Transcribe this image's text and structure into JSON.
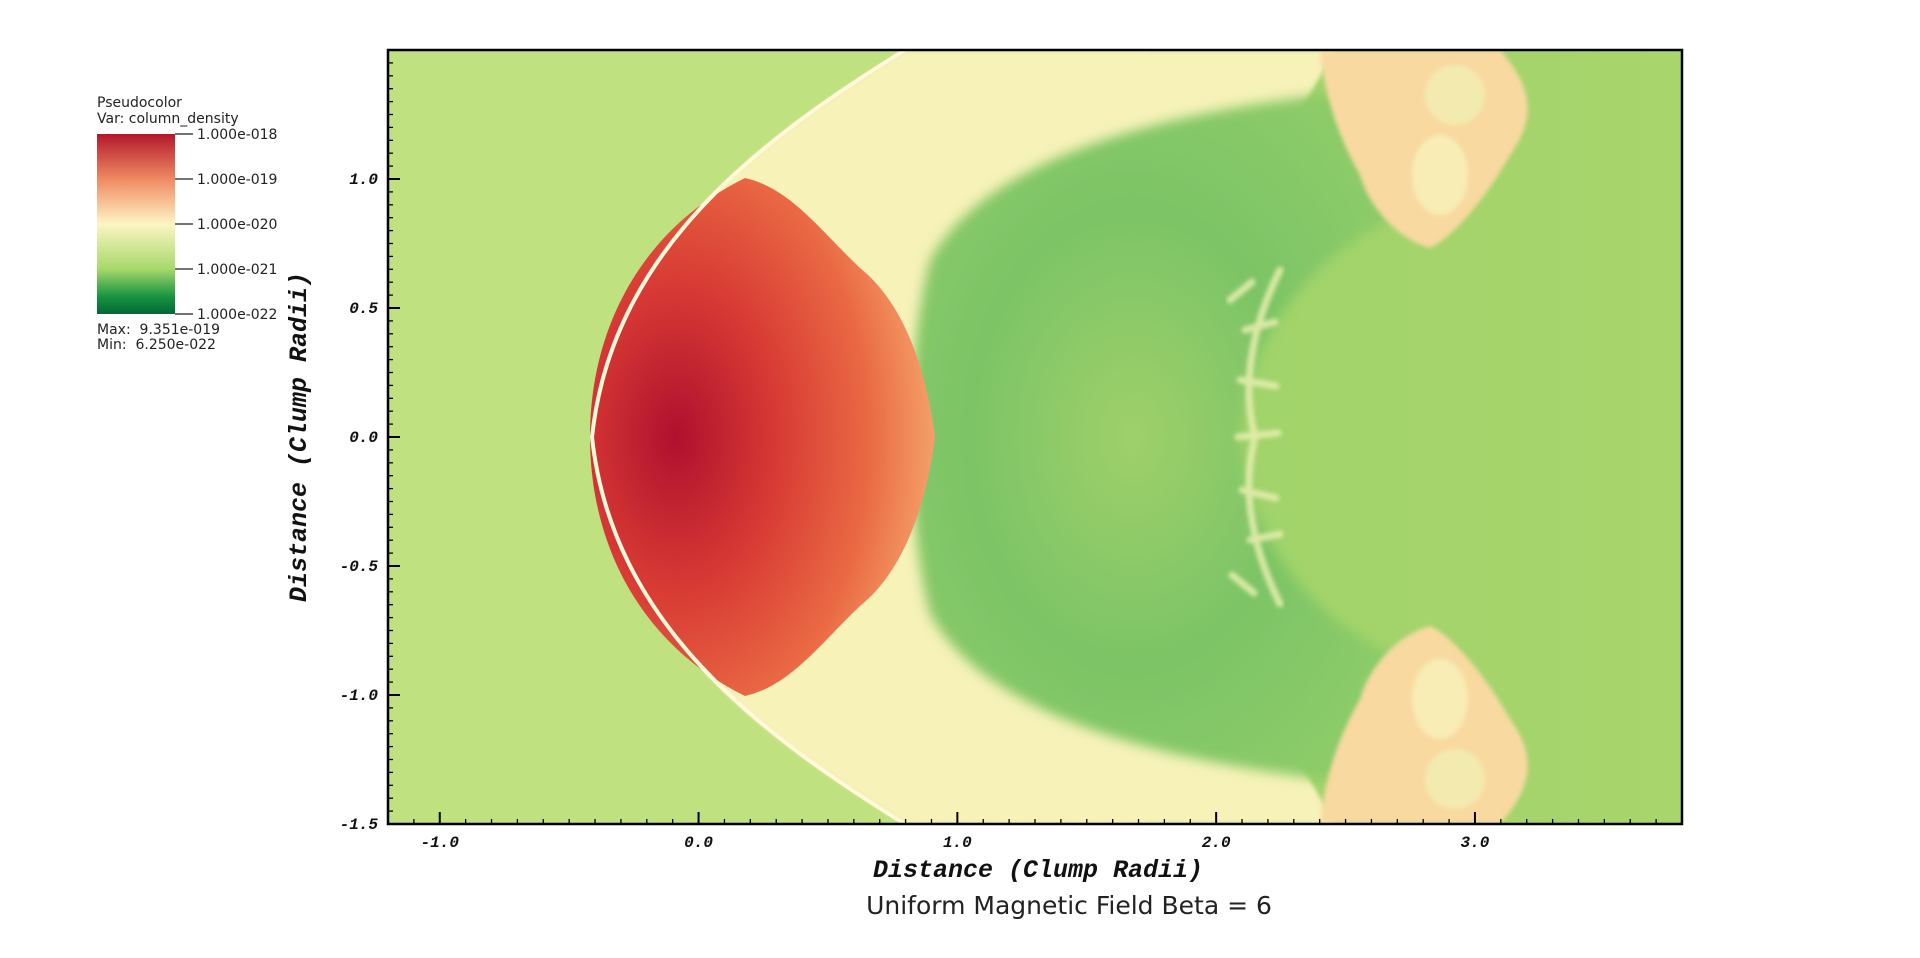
{
  "legend": {
    "title": "Pseudocolor",
    "var_label": "Var: column_density",
    "ticks": [
      "1.000e-018",
      "1.000e-019",
      "1.000e-020",
      "1.000e-021",
      "1.000e-022"
    ],
    "max_label": "Max:  9.351e-019",
    "min_label": "Min:  6.250e-022",
    "colors": [
      "#b2182b",
      "#ef8a62",
      "#fdf5c4",
      "#a6d96a",
      "#1a9641",
      "#006837"
    ]
  },
  "caption": "Uniform Magnetic Field Beta = 6",
  "chart_data": {
    "type": "heatmap",
    "colormap": "red-yellow-green",
    "scale": "log",
    "color_range": [
      1e-22,
      1e-18
    ],
    "data_max": 9.351e-19,
    "data_min": 6.25e-22,
    "variable": "column_density",
    "xlabel": "Distance (Clump Radii)",
    "ylabel": "Distance (Clump Radii)",
    "xlim": [
      -1.2,
      3.8
    ],
    "ylim": [
      -1.5,
      1.5
    ],
    "xticks": [
      -1.0,
      0.0,
      1.0,
      2.0,
      3.0
    ],
    "xtick_labels": [
      "-1.0",
      "0.0",
      "1.0",
      "2.0",
      "3.0"
    ],
    "yticks": [
      1.0,
      0.5,
      0.0,
      -0.5,
      -1.0,
      -1.5
    ],
    "ytick_labels": [
      "1.0",
      "0.5",
      "0.0",
      "-0.5",
      "-1.0",
      "-1.5"
    ],
    "grid": false,
    "colors": {
      "background": "#bfe17f",
      "core": "#b0102e",
      "core_edge": "#e8603c",
      "shell": "#f7c68b",
      "sheath": "#fbf3c0",
      "wake": "#74c267",
      "far_field": "#a8d56c",
      "rim": "#fffbe2"
    }
  }
}
